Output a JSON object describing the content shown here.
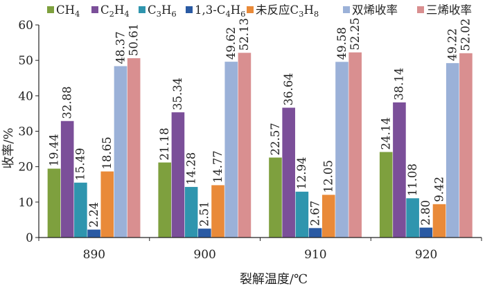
{
  "chart_data": {
    "type": "bar",
    "xlabel": "裂解温度/℃",
    "ylabel": "收率/%",
    "ylim": [
      0,
      60
    ],
    "yticks": [
      "0",
      "10",
      "20",
      "30",
      "40",
      "50",
      "60"
    ],
    "categories": [
      "890",
      "900",
      "910",
      "920"
    ],
    "legend_position": "top",
    "grid": false,
    "series": [
      {
        "name": "CH4",
        "name_parts": [
          {
            "t": "CH"
          },
          {
            "t": "4",
            "sub": true
          }
        ],
        "color": "#7ea03e",
        "values": [
          19.44,
          21.18,
          22.57,
          24.14
        ],
        "value_labels": [
          "19.44",
          "21.18",
          "22.57",
          "24.14"
        ]
      },
      {
        "name": "C2H4",
        "name_parts": [
          {
            "t": "C"
          },
          {
            "t": "2",
            "sub": true
          },
          {
            "t": "H"
          },
          {
            "t": "4",
            "sub": true
          }
        ],
        "color": "#7b4f99",
        "values": [
          32.88,
          35.34,
          36.64,
          38.14
        ],
        "value_labels": [
          "32.88",
          "35.34",
          "36.64",
          "38.14"
        ]
      },
      {
        "name": "C3H6",
        "name_parts": [
          {
            "t": "C"
          },
          {
            "t": "3",
            "sub": true
          },
          {
            "t": "H"
          },
          {
            "t": "6",
            "sub": true
          }
        ],
        "color": "#2f95ae",
        "values": [
          15.49,
          14.28,
          12.94,
          11.08
        ],
        "value_labels": [
          "15.49",
          "14.28",
          "12.94",
          "11.08"
        ]
      },
      {
        "name": "1,3-C4H6",
        "name_parts": [
          {
            "t": "1,3-C"
          },
          {
            "t": "4",
            "sub": true
          },
          {
            "t": "H"
          },
          {
            "t": "6",
            "sub": true
          }
        ],
        "color": "#2a5aa3",
        "values": [
          2.24,
          2.51,
          2.67,
          2.8
        ],
        "value_labels": [
          "2.24",
          "2.51",
          "2.67",
          "2.80"
        ]
      },
      {
        "name": "未反应C3H8",
        "name_parts": [
          {
            "t": "未反应C"
          },
          {
            "t": "3",
            "sub": true
          },
          {
            "t": "H"
          },
          {
            "t": "8",
            "sub": true
          }
        ],
        "color": "#e98a39",
        "values": [
          18.65,
          14.77,
          12.05,
          9.42
        ],
        "value_labels": [
          "18.65",
          "14.77",
          "12.05",
          "9.42"
        ]
      },
      {
        "name": "双烯收率",
        "name_parts": [
          {
            "t": "双烯收率"
          }
        ],
        "color": "#9bb1d8",
        "values": [
          48.37,
          49.62,
          49.58,
          49.22
        ],
        "value_labels": [
          "48.37",
          "49.62",
          "49.58",
          "49.22"
        ]
      },
      {
        "name": "三烯收率",
        "name_parts": [
          {
            "t": "三烯收率"
          }
        ],
        "color": "#d98f90",
        "values": [
          50.61,
          52.13,
          52.25,
          52.02
        ],
        "value_labels": [
          "50.61",
          "52.13",
          "52.25",
          "52.02"
        ]
      }
    ]
  }
}
